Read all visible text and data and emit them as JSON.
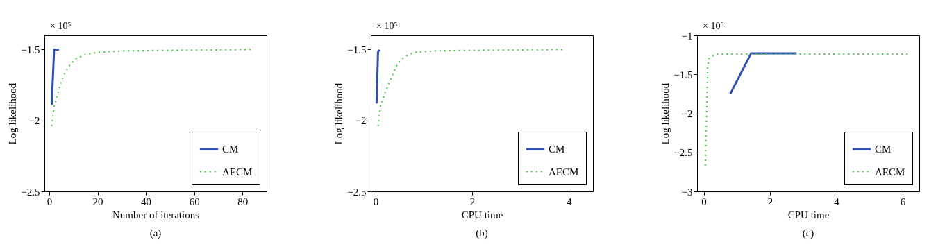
{
  "chart_data": [
    {
      "type": "line",
      "title": "(a)",
      "xlabel": "Number of iterations",
      "ylabel": "Log likelihood",
      "annotations": [
        "× 10⁵"
      ],
      "xlim": [
        -2,
        90
      ],
      "xticks": [
        0,
        20,
        40,
        60,
        80
      ],
      "ylim": [
        -2.5,
        -1.4
      ],
      "yticks": [
        {
          "value": -2.5,
          "label": "−2.5"
        },
        {
          "value": -2,
          "label": "−2"
        },
        {
          "value": -1.5,
          "label": "−1.5"
        }
      ],
      "grid": false,
      "legend": "bottom right",
      "series": [
        {
          "name": "CM",
          "color": "#3050b0",
          "line_style": "solid",
          "x": [
            1,
            2,
            4
          ],
          "values": [
            -1.89,
            -1.5,
            -1.5
          ]
        },
        {
          "name": "AECM",
          "color": "#40c840",
          "line_style": "dotted",
          "x": [
            1,
            2,
            4,
            6,
            8,
            11,
            15,
            20,
            30,
            50,
            84
          ],
          "values": [
            -2.04,
            -1.9,
            -1.78,
            -1.68,
            -1.62,
            -1.565,
            -1.535,
            -1.52,
            -1.51,
            -1.505,
            -1.5
          ]
        }
      ]
    },
    {
      "type": "line",
      "title": "(b)",
      "xlabel": "CPU time",
      "ylabel": "Log likelihood",
      "annotations": [
        "× 10⁵"
      ],
      "xlim": [
        -0.1,
        4.5
      ],
      "xticks": [
        0,
        2,
        4
      ],
      "ylim": [
        -2.5,
        -1.4
      ],
      "yticks": [
        {
          "value": -2.5,
          "label": "−2.5"
        },
        {
          "value": -2,
          "label": "−2"
        },
        {
          "value": -1.5,
          "label": "−1.5"
        }
      ],
      "grid": false,
      "legend": "bottom right",
      "series": [
        {
          "name": "CM",
          "color": "#3050b0",
          "line_style": "solid",
          "x": [
            0.02,
            0.05,
            0.07
          ],
          "values": [
            -1.88,
            -1.52,
            -1.5
          ]
        },
        {
          "name": "AECM",
          "color": "#40c840",
          "line_style": "dotted",
          "x": [
            0.05,
            0.1,
            0.2,
            0.35,
            0.45,
            0.6,
            0.8,
            1.2,
            2,
            3.9
          ],
          "values": [
            -2.04,
            -1.9,
            -1.8,
            -1.68,
            -1.6,
            -1.55,
            -1.52,
            -1.51,
            -1.505,
            -1.5
          ]
        }
      ]
    },
    {
      "type": "line",
      "title": "(c)",
      "xlabel": "CPU time",
      "ylabel": "Log likelihood",
      "annotations": [
        "× 10⁶"
      ],
      "xlim": [
        -0.2,
        6.5
      ],
      "xticks": [
        0,
        2,
        4,
        6
      ],
      "ylim": [
        -3,
        -1
      ],
      "yticks": [
        {
          "value": -3,
          "label": "−3"
        },
        {
          "value": -2.5,
          "label": "−2.5"
        },
        {
          "value": -2,
          "label": "−2"
        },
        {
          "value": -1.5,
          "label": "−1.5"
        },
        {
          "value": -1,
          "label": "−1"
        }
      ],
      "grid": false,
      "legend": "bottom right",
      "series": [
        {
          "name": "CM",
          "color": "#3050b0",
          "line_style": "solid",
          "x": [
            0.8,
            1.43,
            2.8
          ],
          "values": [
            -1.75,
            -1.23,
            -1.23
          ]
        },
        {
          "name": "AECM",
          "color": "#40c840",
          "line_style": "dotted",
          "x": [
            0.05,
            0.07,
            0.1,
            0.12,
            0.15,
            0.35,
            6.15
          ],
          "values": [
            -2.67,
            -2.3,
            -1.8,
            -1.4,
            -1.3,
            -1.24,
            -1.24
          ]
        }
      ]
    }
  ]
}
